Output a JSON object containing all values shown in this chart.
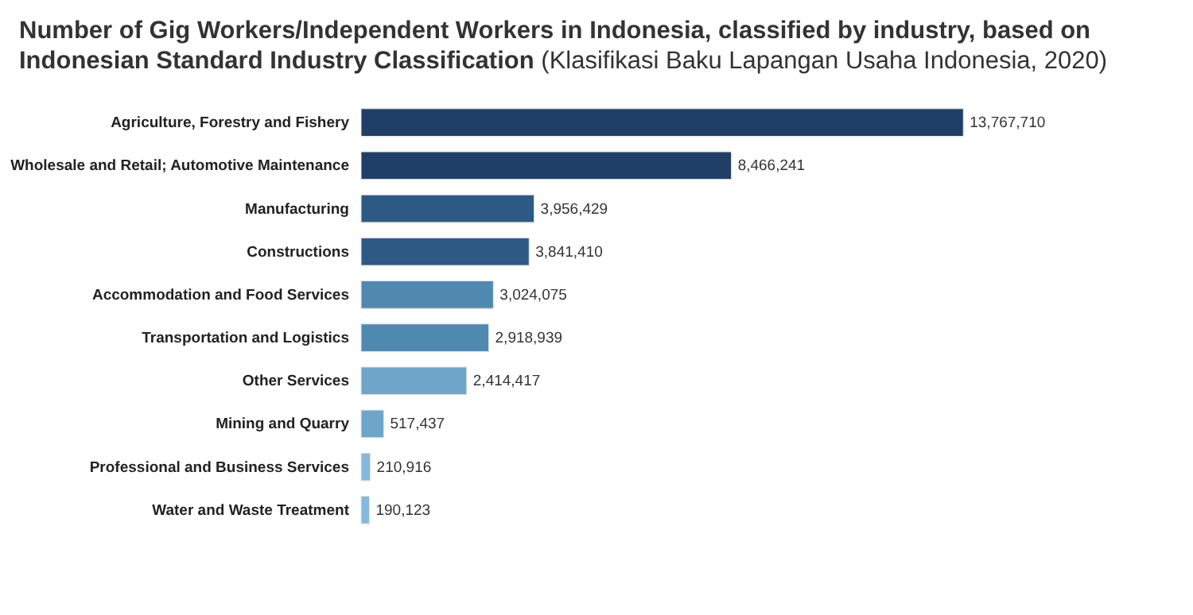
{
  "chart_data": {
    "type": "bar",
    "orientation": "horizontal",
    "title": "Number of Gig Workers/Independent Workers in Indonesia, classified by industry, based on Indonesian Standard Industry Classification",
    "subtitle": "(Klasifikasi Baku Lapangan Usaha Indonesia, 2020)",
    "categories": [
      "Agriculture, Forestry and Fishery",
      "Wholesale and Retail; Automotive Maintenance",
      "Manufacturing",
      "Constructions",
      "Accommodation and Food Services",
      "Transportation and Logistics",
      "Other Services",
      "Mining and Quarry",
      "Professional and Business Services",
      "Water and Waste Treatment"
    ],
    "values": [
      13767710,
      8466241,
      3956429,
      3841410,
      3024075,
      2918939,
      2414417,
      517437,
      210916,
      190123
    ],
    "colors": [
      "#1f3f66",
      "#1f3f66",
      "#2d5a85",
      "#2d5a85",
      "#4f89b0",
      "#4f89b0",
      "#6fa5c9",
      "#6fa5c9",
      "#86b8da",
      "#86b8da"
    ],
    "value_labels": [
      "13,767,710",
      "8,466,241",
      "3,956,429",
      "3,841,410",
      "3,024,075",
      "2,918,939",
      "2,414,417",
      "517,437",
      "210,916",
      "190,123"
    ]
  }
}
